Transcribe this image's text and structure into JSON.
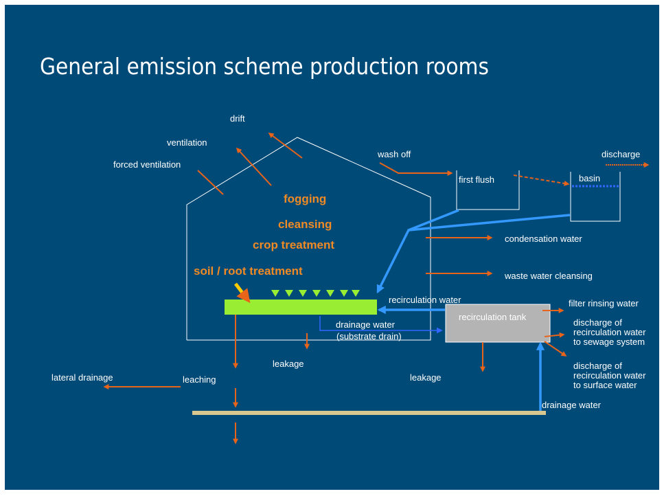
{
  "title": "General emission scheme production rooms",
  "treatments": [
    "fogging",
    "cleansing",
    "crop treatment",
    "soil / root treatment"
  ],
  "labels": [
    "drift",
    "ventilation",
    "forced ventilation",
    "wash off",
    "discharge",
    "first flush",
    "basin",
    "condensation water",
    "waste water cleansing",
    "recirculation water",
    "filter rinsing water",
    "recirculation tank",
    "drainage water",
    "(substrate drain)",
    "discharge of",
    "recirculation water",
    "to sewage system",
    "leakage",
    "leakage",
    "lateral drainage",
    "leaching",
    "discharge of",
    "recirculation water",
    "to surface water",
    "drainage water"
  ]
}
